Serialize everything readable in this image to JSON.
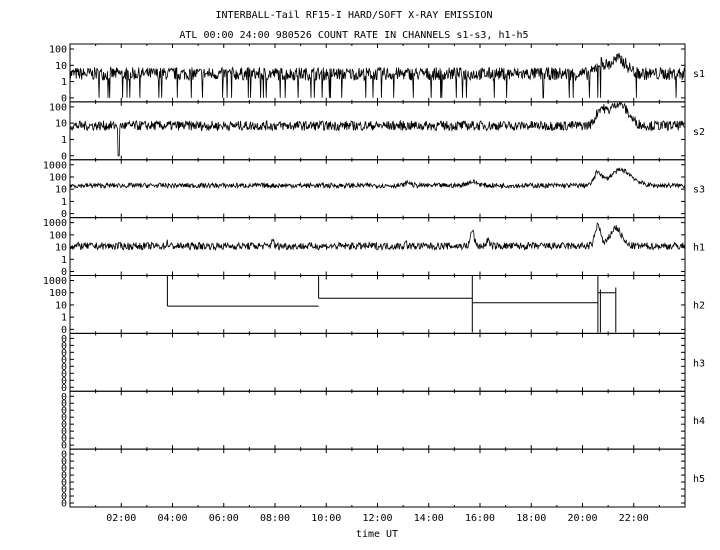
{
  "chart_data": {
    "type": "line",
    "title": "INTERBALL-Tail RF15-I HARD/SOFT X-RAY EMISSION",
    "subtitle": "ATL 00:00 24:00 980526  COUNT RATE IN CHANNELS s1-s3, h1-h5",
    "xlabel": "time UT",
    "xlim": [
      0,
      24
    ],
    "x_ticks": [
      "02:00",
      "04:00",
      "06:00",
      "08:00",
      "10:00",
      "12:00",
      "14:00",
      "16:00",
      "18:00",
      "20:00",
      "22:00"
    ],
    "panels": [
      {
        "name": "s1",
        "y_ticks": [
          "100",
          "10",
          "1",
          "0"
        ],
        "y_max": "100",
        "baseline": 3,
        "noise": 0.8,
        "drops": true,
        "features": [
          {
            "t": 20.7,
            "amp": 1.2,
            "w": 0.25
          },
          {
            "t": 21.4,
            "amp": 1.8,
            "w": 0.45
          }
        ]
      },
      {
        "name": "s2",
        "y_ticks": [
          "100",
          "10",
          "1",
          "0"
        ],
        "y_max": "100",
        "baseline": 7,
        "noise": 0.6,
        "drops": false,
        "features": [
          {
            "t": 20.7,
            "amp": 1.8,
            "w": 0.25
          },
          {
            "t": 21.4,
            "amp": 2.8,
            "w": 0.5
          }
        ]
      },
      {
        "name": "s3",
        "y_ticks": [
          "1000",
          "100",
          "10",
          "1",
          "0"
        ],
        "y_max": "1000",
        "baseline": 20,
        "noise": 0.4,
        "drops": false,
        "features": [
          {
            "t": 13.2,
            "amp": 0.5,
            "w": 0.15
          },
          {
            "t": 15.7,
            "amp": 0.6,
            "w": 0.3
          },
          {
            "t": 20.6,
            "amp": 2.0,
            "w": 0.2
          },
          {
            "t": 21.5,
            "amp": 2.5,
            "w": 0.6
          }
        ]
      },
      {
        "name": "h1",
        "y_ticks": [
          "1000",
          "100",
          "10",
          "1",
          "0"
        ],
        "y_max": "1000",
        "baseline": 12,
        "noise": 0.6,
        "drops": false,
        "features": [
          {
            "t": 3.8,
            "amp": 0.6,
            "w": 0.05
          },
          {
            "t": 7.9,
            "amp": 1.4,
            "w": 0.05
          },
          {
            "t": 13.1,
            "amp": 0.6,
            "w": 0.05
          },
          {
            "t": 15.7,
            "amp": 2.6,
            "w": 0.1
          },
          {
            "t": 16.3,
            "amp": 1.0,
            "w": 0.08
          },
          {
            "t": 20.6,
            "amp": 3.5,
            "w": 0.15
          },
          {
            "t": 21.3,
            "amp": 3.0,
            "w": 0.3
          }
        ]
      },
      {
        "name": "h2",
        "y_ticks": [
          "1000",
          "100",
          "10",
          "1",
          "0"
        ],
        "y_max": "1000",
        "steps": [
          {
            "t": 0,
            "v": null
          },
          {
            "t": 3.8,
            "v": 8
          },
          {
            "t": 9.7,
            "v": 35
          },
          {
            "t": 15.7,
            "v": 15
          },
          {
            "t": 20.6,
            "v": 100
          },
          {
            "t": 21.3,
            "v": null
          }
        ]
      },
      {
        "name": "h3",
        "y_ticks": [
          "0",
          "0",
          "0",
          "0",
          "0",
          "0",
          "0",
          "0"
        ],
        "y_max": "0"
      },
      {
        "name": "h4",
        "y_ticks": [
          "0",
          "0",
          "0",
          "0",
          "0",
          "0",
          "0",
          "0"
        ],
        "y_max": "0"
      },
      {
        "name": "h5",
        "y_ticks": [
          "0",
          "0",
          "0",
          "0",
          "0",
          "0",
          "0",
          "0"
        ],
        "y_max": "0"
      }
    ]
  }
}
